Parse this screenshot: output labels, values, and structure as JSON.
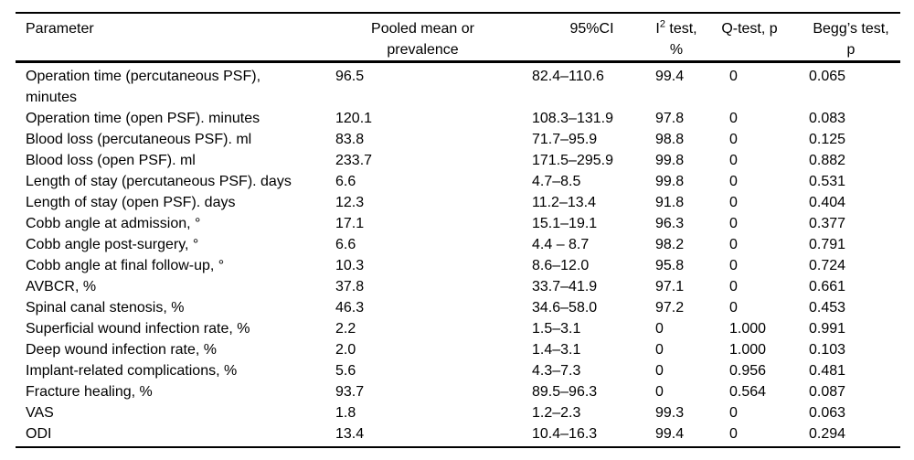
{
  "page": {
    "background_color": "#ffffff",
    "text_color": "#000000",
    "rule_color": "#000000"
  },
  "table": {
    "header": {
      "parameter": "Parameter",
      "pooled_line1": "Pooled mean or",
      "pooled_line2": "prevalence",
      "ci": "95%CI",
      "i2_pre": "I",
      "i2_sup": "2",
      "i2_post": " test,",
      "i2_line2": "%",
      "qtest": "Q-test, p",
      "beggs_line1": "Begg’s test,",
      "beggs_line2": "p"
    },
    "rows": [
      [
        "Operation time (percutaneous PSF), minutes",
        "96.5",
        "82.4–110.6",
        "99.4",
        "0",
        "0.065"
      ],
      [
        "Operation time (open PSF). minutes",
        "120.1",
        "108.3–131.9",
        "97.8",
        "0",
        "0.083"
      ],
      [
        "Blood loss (percutaneous PSF). ml",
        "83.8",
        "71.7–95.9",
        "98.8",
        "0",
        "0.125"
      ],
      [
        "Blood loss (open PSF). ml",
        "233.7",
        "171.5–295.9",
        "99.8",
        "0",
        "0.882"
      ],
      [
        "Length of stay (percutaneous PSF). days",
        "6.6",
        "4.7–8.5",
        "99.8",
        "0",
        "0.531"
      ],
      [
        "Length of stay (open PSF). days",
        "12.3",
        "11.2–13.4",
        "91.8",
        "0",
        "0.404"
      ],
      [
        "Cobb angle at admission, °",
        "17.1",
        "15.1–19.1",
        "96.3",
        "0",
        "0.377"
      ],
      [
        "Cobb angle post-surgery, °",
        "6.6",
        "4.4 – 8.7",
        "98.2",
        "0",
        "0.791"
      ],
      [
        "Cobb angle at final follow-up, °",
        "10.3",
        "8.6–12.0",
        "95.8",
        "0",
        "0.724"
      ],
      [
        "AVBCR, %",
        "37.8",
        "33.7–41.9",
        "97.1",
        "0",
        "0.661"
      ],
      [
        "Spinal canal stenosis, %",
        "46.3",
        "34.6–58.0",
        "97.2",
        "0",
        "0.453"
      ],
      [
        "Superficial wound infection rate, %",
        "2.2",
        "1.5–3.1",
        "0",
        "1.000",
        "0.991"
      ],
      [
        "Deep wound infection rate, %",
        "2.0",
        "1.4–3.1",
        "0",
        "1.000",
        "0.103"
      ],
      [
        "Implant-related complications, %",
        "5.6",
        "4.3–7.3",
        "0",
        "0.956",
        "0.481"
      ],
      [
        "Fracture healing, %",
        "93.7",
        "89.5–96.3",
        "0",
        "0.564",
        "0.087"
      ],
      [
        "VAS",
        "1.8",
        "1.2–2.3",
        "99.3",
        "0",
        "0.063"
      ],
      [
        "ODI",
        "13.4",
        "10.4–16.3",
        "99.4",
        "0",
        "0.294"
      ]
    ]
  }
}
